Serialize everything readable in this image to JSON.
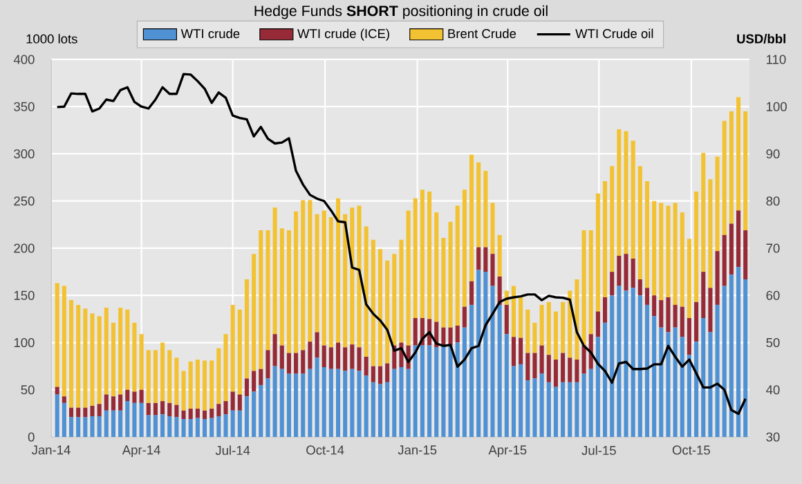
{
  "chart_data": {
    "type": "bar",
    "stacked": true,
    "title": "Hedge Funds **SHORT** positioning in crude oil",
    "ylabel": "1000 lots",
    "y2label": "USD/bbl",
    "x": [
      "2014-01-07",
      "2014-01-14",
      "2014-01-21",
      "2014-01-28",
      "2014-02-04",
      "2014-02-11",
      "2014-02-18",
      "2014-02-25",
      "2014-03-04",
      "2014-03-11",
      "2014-03-18",
      "2014-03-25",
      "2014-04-01",
      "2014-04-08",
      "2014-04-15",
      "2014-04-22",
      "2014-04-29",
      "2014-05-06",
      "2014-05-13",
      "2014-05-20",
      "2014-05-27",
      "2014-06-03",
      "2014-06-10",
      "2014-06-17",
      "2014-06-24",
      "2014-07-01",
      "2014-07-08",
      "2014-07-15",
      "2014-07-22",
      "2014-07-29",
      "2014-08-05",
      "2014-08-12",
      "2014-08-19",
      "2014-08-26",
      "2014-09-02",
      "2014-09-09",
      "2014-09-16",
      "2014-09-23",
      "2014-09-30",
      "2014-10-07",
      "2014-10-14",
      "2014-10-21",
      "2014-10-28",
      "2014-11-04",
      "2014-11-11",
      "2014-11-18",
      "2014-11-25",
      "2014-12-02",
      "2014-12-09",
      "2014-12-16",
      "2014-12-23",
      "2014-12-30",
      "2015-01-06",
      "2015-01-13",
      "2015-01-20",
      "2015-01-27",
      "2015-02-03",
      "2015-02-10",
      "2015-02-17",
      "2015-02-24",
      "2015-03-03",
      "2015-03-10",
      "2015-03-17",
      "2015-03-24",
      "2015-03-31",
      "2015-04-07",
      "2015-04-14",
      "2015-04-21",
      "2015-04-28",
      "2015-05-05",
      "2015-05-12",
      "2015-05-19",
      "2015-05-26",
      "2015-06-02",
      "2015-06-09",
      "2015-06-16",
      "2015-06-23",
      "2015-06-30",
      "2015-07-07",
      "2015-07-14",
      "2015-07-21",
      "2015-07-28",
      "2015-08-04",
      "2015-08-11",
      "2015-08-18",
      "2015-08-25",
      "2015-09-01",
      "2015-09-08",
      "2015-09-15",
      "2015-09-22",
      "2015-09-29",
      "2015-10-06",
      "2015-10-13",
      "2015-10-20",
      "2015-10-27",
      "2015-11-03",
      "2015-11-10",
      "2015-11-17",
      "2015-11-24"
    ],
    "series": [
      {
        "name": "WTI crude",
        "color": "#4f91d3",
        "values": [
          45,
          36,
          21,
          21,
          21,
          22,
          22,
          28,
          28,
          28,
          38,
          36,
          36,
          23,
          23,
          24,
          22,
          21,
          19,
          19,
          20,
          19,
          20,
          22,
          24,
          28,
          28,
          43,
          48,
          55,
          62,
          75,
          72,
          67,
          67,
          67,
          72,
          84,
          74,
          72,
          72,
          70,
          72,
          70,
          65,
          58,
          56,
          58,
          72,
          74,
          72,
          97,
          97,
          97,
          95,
          97,
          97,
          100,
          116,
          140,
          177,
          175,
          160,
          140,
          109,
          75,
          77,
          60,
          62,
          67,
          58,
          53,
          58,
          58,
          58,
          67,
          72,
          106,
          121,
          150,
          160,
          155,
          158,
          150,
          140,
          128,
          116,
          111,
          116,
          106,
          87,
          101,
          126,
          111,
          140,
          160,
          172,
          180,
          167
        ]
      },
      {
        "name": "WTI crude (ICE)",
        "color": "#962a36",
        "values": [
          8,
          7,
          10,
          10,
          10,
          11,
          13,
          17,
          15,
          17,
          12,
          12,
          14,
          13,
          13,
          14,
          14,
          13,
          9,
          11,
          10,
          9,
          10,
          13,
          14,
          20,
          17,
          19,
          22,
          17,
          30,
          34,
          25,
          22,
          22,
          25,
          29,
          27,
          23,
          23,
          28,
          25,
          26,
          25,
          20,
          17,
          19,
          20,
          25,
          26,
          25,
          29,
          29,
          28,
          27,
          19,
          19,
          18,
          22,
          25,
          24,
          26,
          34,
          30,
          31,
          31,
          28,
          29,
          27,
          30,
          29,
          29,
          31,
          26,
          24,
          30,
          37,
          27,
          27,
          25,
          32,
          39,
          31,
          17,
          18,
          22,
          29,
          37,
          24,
          32,
          39,
          42,
          49,
          47,
          57,
          54,
          54,
          60,
          52
        ]
      },
      {
        "name": "Brent Crude",
        "color": "#f3c232",
        "values": [
          110,
          117,
          114,
          109,
          105,
          98,
          93,
          92,
          78,
          92,
          85,
          73,
          59,
          56,
          56,
          62,
          56,
          50,
          42,
          50,
          52,
          53,
          51,
          59,
          71,
          92,
          90,
          105,
          124,
          147,
          127,
          134,
          124,
          130,
          150,
          159,
          150,
          125,
          143,
          138,
          153,
          141,
          145,
          150,
          138,
          134,
          124,
          109,
          97,
          109,
          143,
          127,
          136,
          135,
          116,
          95,
          112,
          127,
          124,
          134,
          90,
          81,
          54,
          44,
          15,
          54,
          43,
          46,
          32,
          43,
          56,
          51,
          54,
          71,
          85,
          122,
          110,
          125,
          123,
          112,
          134,
          130,
          125,
          120,
          113,
          100,
          103,
          97,
          108,
          100,
          84,
          117,
          126,
          115,
          100,
          121,
          119,
          120,
          126
        ]
      },
      {
        "name": "WTI Crude oil",
        "type": "line",
        "axis": "y2",
        "color": "#000000",
        "values": [
          99.9,
          100,
          102.8,
          102.7,
          102.7,
          99,
          99.6,
          101.5,
          101.2,
          103.5,
          104.1,
          101,
          100,
          99.6,
          101.5,
          104.1,
          102.7,
          102.7,
          106.9,
          106.8,
          105.4,
          103.8,
          100.8,
          103,
          101.9,
          98.1,
          97.6,
          97.3,
          93.7,
          95.7,
          93.2,
          92.2,
          92.4,
          93.3,
          86.4,
          83.5,
          81.3,
          80.5,
          80,
          78,
          75.7,
          75.5,
          65.9,
          65.4,
          58.1,
          56.1,
          54.7,
          52.7,
          48.3,
          48.8,
          45.9,
          47.9,
          50.8,
          52.2,
          49.8,
          49.3,
          49.5,
          44.9,
          46.4,
          48.8,
          49.3,
          53.7,
          56.1,
          58.6,
          59.3,
          59.6,
          59.8,
          60.2,
          60.2,
          59,
          59.9,
          59.6,
          59.5,
          59.1,
          52.2,
          49.3,
          47.9,
          45.5,
          44,
          41.5,
          45.6,
          45.9,
          44.4,
          44.4,
          44.5,
          45.4,
          45.4,
          49.3,
          47,
          44.9,
          46.4,
          43.5,
          40.5,
          40.5,
          41.3,
          40,
          35.7,
          34.9,
          38.1
        ]
      }
    ],
    "xlim": [
      "2014-01-01",
      "2015-11-28"
    ],
    "xticks": [
      {
        "value": "2014-01-01",
        "label": "Jan-14"
      },
      {
        "value": "2014-04-01",
        "label": "Apr-14"
      },
      {
        "value": "2014-07-01",
        "label": "Jul-14"
      },
      {
        "value": "2014-10-01",
        "label": "Oct-14"
      },
      {
        "value": "2015-01-01",
        "label": "Jan-15"
      },
      {
        "value": "2015-04-01",
        "label": "Apr-15"
      },
      {
        "value": "2015-07-01",
        "label": "Jul-15"
      },
      {
        "value": "2015-10-01",
        "label": "Oct-15"
      }
    ],
    "ylim": [
      0,
      400
    ],
    "yticks": [
      0,
      50,
      100,
      150,
      200,
      250,
      300,
      350,
      400
    ],
    "y2lim": [
      30,
      110
    ],
    "y2ticks": [
      30,
      40,
      50,
      60,
      70,
      80,
      90,
      100,
      110
    ],
    "grid": true,
    "legend": "top"
  }
}
